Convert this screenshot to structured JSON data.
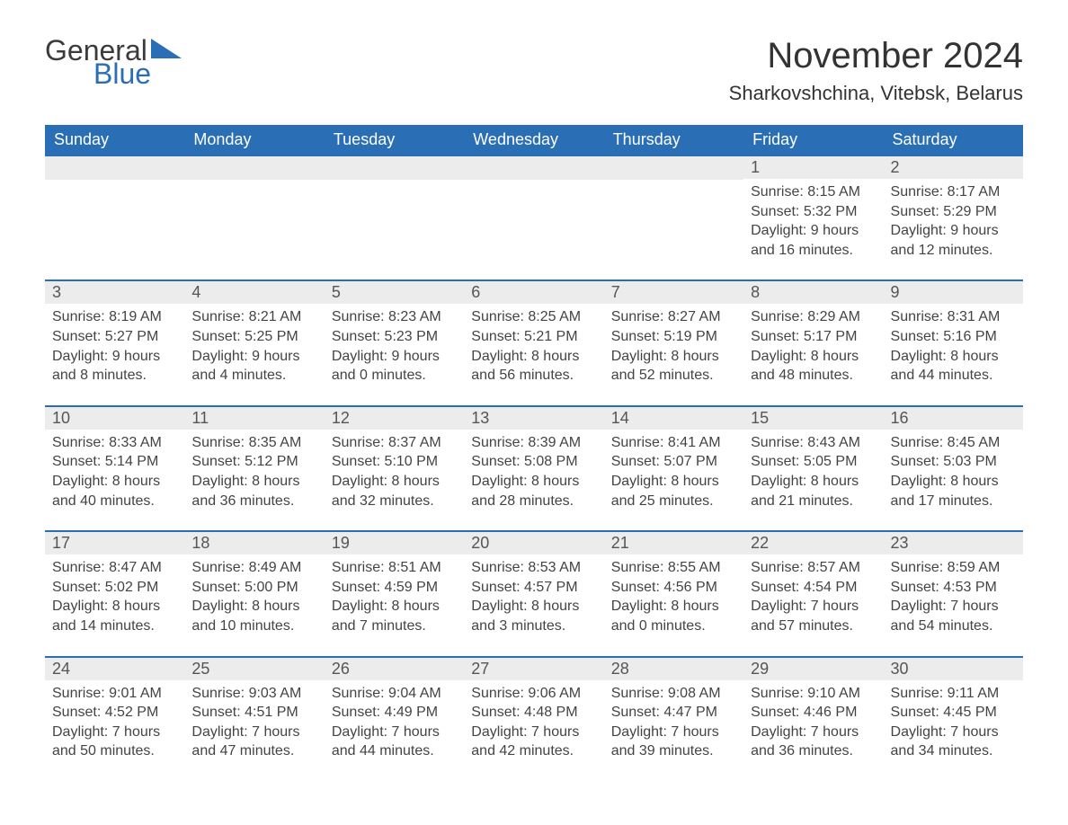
{
  "logo": {
    "word1": "General",
    "word2": "Blue",
    "triangle_color": "#2a6fb5"
  },
  "title": "November 2024",
  "location": "Sharkovshchina, Vitebsk, Belarus",
  "colors": {
    "header_bg": "#2a6fb5",
    "header_text": "#ffffff",
    "row_border": "#2a6fb5",
    "daynum_bg": "#ececec",
    "body_text": "#444444",
    "page_bg": "#ffffff"
  },
  "layout": {
    "columns": 7,
    "rows": 5,
    "first_day_column_index": 5
  },
  "day_headers": [
    "Sunday",
    "Monday",
    "Tuesday",
    "Wednesday",
    "Thursday",
    "Friday",
    "Saturday"
  ],
  "weeks": [
    [
      null,
      null,
      null,
      null,
      null,
      {
        "n": "1",
        "sunrise": "Sunrise: 8:15 AM",
        "sunset": "Sunset: 5:32 PM",
        "day1": "Daylight: 9 hours",
        "day2": "and 16 minutes."
      },
      {
        "n": "2",
        "sunrise": "Sunrise: 8:17 AM",
        "sunset": "Sunset: 5:29 PM",
        "day1": "Daylight: 9 hours",
        "day2": "and 12 minutes."
      }
    ],
    [
      {
        "n": "3",
        "sunrise": "Sunrise: 8:19 AM",
        "sunset": "Sunset: 5:27 PM",
        "day1": "Daylight: 9 hours",
        "day2": "and 8 minutes."
      },
      {
        "n": "4",
        "sunrise": "Sunrise: 8:21 AM",
        "sunset": "Sunset: 5:25 PM",
        "day1": "Daylight: 9 hours",
        "day2": "and 4 minutes."
      },
      {
        "n": "5",
        "sunrise": "Sunrise: 8:23 AM",
        "sunset": "Sunset: 5:23 PM",
        "day1": "Daylight: 9 hours",
        "day2": "and 0 minutes."
      },
      {
        "n": "6",
        "sunrise": "Sunrise: 8:25 AM",
        "sunset": "Sunset: 5:21 PM",
        "day1": "Daylight: 8 hours",
        "day2": "and 56 minutes."
      },
      {
        "n": "7",
        "sunrise": "Sunrise: 8:27 AM",
        "sunset": "Sunset: 5:19 PM",
        "day1": "Daylight: 8 hours",
        "day2": "and 52 minutes."
      },
      {
        "n": "8",
        "sunrise": "Sunrise: 8:29 AM",
        "sunset": "Sunset: 5:17 PM",
        "day1": "Daylight: 8 hours",
        "day2": "and 48 minutes."
      },
      {
        "n": "9",
        "sunrise": "Sunrise: 8:31 AM",
        "sunset": "Sunset: 5:16 PM",
        "day1": "Daylight: 8 hours",
        "day2": "and 44 minutes."
      }
    ],
    [
      {
        "n": "10",
        "sunrise": "Sunrise: 8:33 AM",
        "sunset": "Sunset: 5:14 PM",
        "day1": "Daylight: 8 hours",
        "day2": "and 40 minutes."
      },
      {
        "n": "11",
        "sunrise": "Sunrise: 8:35 AM",
        "sunset": "Sunset: 5:12 PM",
        "day1": "Daylight: 8 hours",
        "day2": "and 36 minutes."
      },
      {
        "n": "12",
        "sunrise": "Sunrise: 8:37 AM",
        "sunset": "Sunset: 5:10 PM",
        "day1": "Daylight: 8 hours",
        "day2": "and 32 minutes."
      },
      {
        "n": "13",
        "sunrise": "Sunrise: 8:39 AM",
        "sunset": "Sunset: 5:08 PM",
        "day1": "Daylight: 8 hours",
        "day2": "and 28 minutes."
      },
      {
        "n": "14",
        "sunrise": "Sunrise: 8:41 AM",
        "sunset": "Sunset: 5:07 PM",
        "day1": "Daylight: 8 hours",
        "day2": "and 25 minutes."
      },
      {
        "n": "15",
        "sunrise": "Sunrise: 8:43 AM",
        "sunset": "Sunset: 5:05 PM",
        "day1": "Daylight: 8 hours",
        "day2": "and 21 minutes."
      },
      {
        "n": "16",
        "sunrise": "Sunrise: 8:45 AM",
        "sunset": "Sunset: 5:03 PM",
        "day1": "Daylight: 8 hours",
        "day2": "and 17 minutes."
      }
    ],
    [
      {
        "n": "17",
        "sunrise": "Sunrise: 8:47 AM",
        "sunset": "Sunset: 5:02 PM",
        "day1": "Daylight: 8 hours",
        "day2": "and 14 minutes."
      },
      {
        "n": "18",
        "sunrise": "Sunrise: 8:49 AM",
        "sunset": "Sunset: 5:00 PM",
        "day1": "Daylight: 8 hours",
        "day2": "and 10 minutes."
      },
      {
        "n": "19",
        "sunrise": "Sunrise: 8:51 AM",
        "sunset": "Sunset: 4:59 PM",
        "day1": "Daylight: 8 hours",
        "day2": "and 7 minutes."
      },
      {
        "n": "20",
        "sunrise": "Sunrise: 8:53 AM",
        "sunset": "Sunset: 4:57 PM",
        "day1": "Daylight: 8 hours",
        "day2": "and 3 minutes."
      },
      {
        "n": "21",
        "sunrise": "Sunrise: 8:55 AM",
        "sunset": "Sunset: 4:56 PM",
        "day1": "Daylight: 8 hours",
        "day2": "and 0 minutes."
      },
      {
        "n": "22",
        "sunrise": "Sunrise: 8:57 AM",
        "sunset": "Sunset: 4:54 PM",
        "day1": "Daylight: 7 hours",
        "day2": "and 57 minutes."
      },
      {
        "n": "23",
        "sunrise": "Sunrise: 8:59 AM",
        "sunset": "Sunset: 4:53 PM",
        "day1": "Daylight: 7 hours",
        "day2": "and 54 minutes."
      }
    ],
    [
      {
        "n": "24",
        "sunrise": "Sunrise: 9:01 AM",
        "sunset": "Sunset: 4:52 PM",
        "day1": "Daylight: 7 hours",
        "day2": "and 50 minutes."
      },
      {
        "n": "25",
        "sunrise": "Sunrise: 9:03 AM",
        "sunset": "Sunset: 4:51 PM",
        "day1": "Daylight: 7 hours",
        "day2": "and 47 minutes."
      },
      {
        "n": "26",
        "sunrise": "Sunrise: 9:04 AM",
        "sunset": "Sunset: 4:49 PM",
        "day1": "Daylight: 7 hours",
        "day2": "and 44 minutes."
      },
      {
        "n": "27",
        "sunrise": "Sunrise: 9:06 AM",
        "sunset": "Sunset: 4:48 PM",
        "day1": "Daylight: 7 hours",
        "day2": "and 42 minutes."
      },
      {
        "n": "28",
        "sunrise": "Sunrise: 9:08 AM",
        "sunset": "Sunset: 4:47 PM",
        "day1": "Daylight: 7 hours",
        "day2": "and 39 minutes."
      },
      {
        "n": "29",
        "sunrise": "Sunrise: 9:10 AM",
        "sunset": "Sunset: 4:46 PM",
        "day1": "Daylight: 7 hours",
        "day2": "and 36 minutes."
      },
      {
        "n": "30",
        "sunrise": "Sunrise: 9:11 AM",
        "sunset": "Sunset: 4:45 PM",
        "day1": "Daylight: 7 hours",
        "day2": "and 34 minutes."
      }
    ]
  ]
}
